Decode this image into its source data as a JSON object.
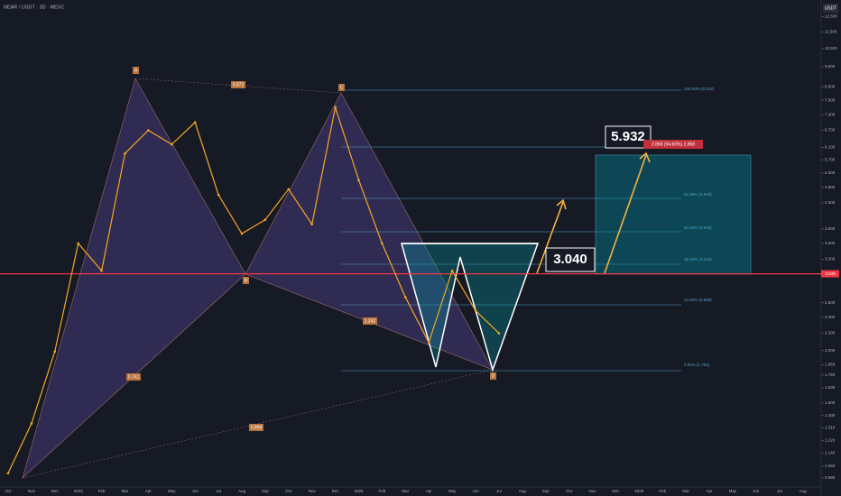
{
  "chart_data": {
    "type": "line",
    "title": "NEAR / USDT · 3D · MEXC",
    "currency": "USDT",
    "categories": [
      "Oct",
      "Nov",
      "Dec",
      "2024",
      "Feb",
      "Mar",
      "Apr",
      "May",
      "Jun",
      "Jul",
      "Aug",
      "Sep",
      "Oct",
      "Nov",
      "Dec",
      "2025",
      "Feb",
      "Mar",
      "Apr",
      "May",
      "Jun",
      "Jul",
      "Aug",
      "Sep",
      "Oct",
      "Nov",
      "Dec",
      "2026",
      "Feb",
      "Mar",
      "Apr",
      "May",
      "Jun",
      "Jul",
      "Aug"
    ],
    "series": [
      {
        "name": "NEAR",
        "color": "#f5a623",
        "values": [
          1.02,
          1.34,
          1.99,
          3.6,
          3.1,
          5.9,
          6.7,
          6.2,
          7.0,
          4.7,
          3.8,
          4.1,
          4.85,
          4.0,
          7.6,
          5.1,
          3.6,
          2.68,
          2.09,
          3.1,
          2.49,
          2.2,
          null,
          null,
          null,
          null,
          null,
          null,
          null,
          null,
          null,
          null,
          null,
          null,
          null
        ]
      }
    ],
    "ylim": [
      0.9,
      13.7
    ],
    "log_scale": true,
    "yticks": [
      {
        "value": 12.5,
        "label": "12.500"
      },
      {
        "value": 11.5,
        "label": "11.500"
      },
      {
        "value": 10.5,
        "label": "10.500"
      },
      {
        "value": 9.5,
        "label": "9.500"
      },
      {
        "value": 8.5,
        "label": "8.500"
      },
      {
        "value": 7.9,
        "label": "7.900"
      },
      {
        "value": 7.3,
        "label": "7.300"
      },
      {
        "value": 6.7,
        "label": "6.700"
      },
      {
        "value": 6.1,
        "label": "6.100"
      },
      {
        "value": 5.7,
        "label": "5.700"
      },
      {
        "value": 5.3,
        "label": "5.300"
      },
      {
        "value": 4.9,
        "label": "4.900"
      },
      {
        "value": 4.5,
        "label": "4.500"
      },
      {
        "value": 3.9,
        "label": "3.900"
      },
      {
        "value": 3.6,
        "label": "3.600"
      },
      {
        "value": 3.3,
        "label": "3.300"
      },
      {
        "value": 2.6,
        "label": "2.600"
      },
      {
        "value": 2.4,
        "label": "2.400"
      },
      {
        "value": 2.2,
        "label": "2.200"
      },
      {
        "value": 2.0,
        "label": "2.000"
      },
      {
        "value": 1.85,
        "label": "1.850"
      },
      {
        "value": 1.75,
        "label": "1.750"
      },
      {
        "value": 1.63,
        "label": "1.630"
      },
      {
        "value": 1.5,
        "label": "1.500"
      },
      {
        "value": 1.4,
        "label": "1.400"
      },
      {
        "value": 1.31,
        "label": "1.310"
      },
      {
        "value": 1.22,
        "label": "1.220"
      },
      {
        "value": 1.14,
        "label": "1.140"
      },
      {
        "value": 1.06,
        "label": "1.060"
      },
      0.995
    ],
    "price_line": {
      "value": 3.048,
      "color": "#f23645"
    },
    "points": [
      "A",
      "B",
      "C",
      "D"
    ],
    "ratios": [
      "0.872",
      "1.242",
      "0.741",
      "0.898"
    ],
    "fib_labels": [
      "100.00% (8.342)",
      "61.80% (4.603)",
      "50.00% (3.846)",
      "38.20% (3.210)",
      "23.60% (2.569)",
      "0.00% (1.792)"
    ],
    "entry_label": "3.040",
    "target_label": "5.932",
    "target_info": "2.868 (94.60%) 2,868"
  }
}
